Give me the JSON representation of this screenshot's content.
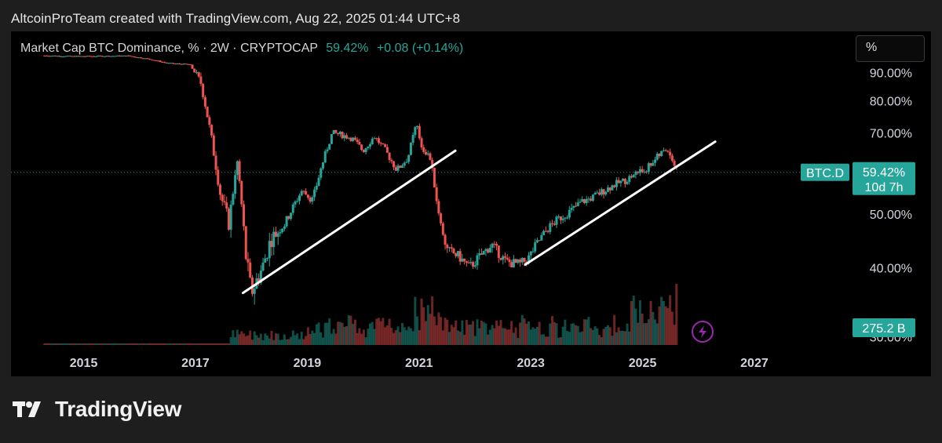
{
  "caption": "AltcoinProTeam created with TradingView.com, Aug 22, 2025 01:44 UTC+8",
  "legend": {
    "name": "Market Cap BTC Dominance, % · 2W · CRYPTOCAP",
    "value": "59.42%",
    "change": "+0.08 (+0.14%)"
  },
  "scale_button": "%",
  "brand": "TradingView",
  "colors": {
    "up": "#26a69a",
    "down": "#ef5350",
    "line": "#ffffff",
    "badge": "#26a69a",
    "lightning": "#9c27b0"
  },
  "chart_data": {
    "type": "line",
    "symbol_label": "BTC.D",
    "last_value_label": "59.42%",
    "countdown_label": "10d 7h",
    "volume_label": "275.2 B",
    "last_value": 59.42,
    "y_ticks": [
      "90.00%",
      "80.00%",
      "70.00%",
      "50.00%",
      "40.00%",
      "30.00%"
    ],
    "y_tick_values": [
      90,
      80,
      70,
      50,
      40,
      30
    ],
    "x_ticks": [
      "2015",
      "2017",
      "2019",
      "2021",
      "2023",
      "2025",
      "2027"
    ],
    "x_tick_values": [
      2015,
      2017,
      2019,
      2021,
      2023,
      2025,
      2027
    ],
    "xlim": [
      2013.7,
      2028.7
    ],
    "ylim": [
      29,
      100
    ],
    "series": [
      {
        "x": [
          2014.3,
          2014.8,
          2015.3,
          2015.8,
          2016.2,
          2016.5,
          2016.9,
          2017.1,
          2017.3,
          2017.45,
          2017.6,
          2017.75,
          2017.9,
          2018.0,
          2018.2,
          2018.35,
          2018.6,
          2018.9,
          2019.1,
          2019.3,
          2019.45,
          2019.6,
          2019.8,
          2020.0,
          2020.2,
          2020.4,
          2020.6,
          2020.8,
          2020.95,
          2021.05,
          2021.2,
          2021.35,
          2021.5,
          2021.7,
          2021.9,
          2022.1,
          2022.3,
          2022.55,
          2022.8,
          2022.95,
          2023.1,
          2023.3,
          2023.5,
          2023.7,
          2023.9,
          2024.1,
          2024.3,
          2024.5,
          2024.7,
          2024.9,
          2025.05,
          2025.2,
          2025.35,
          2025.45,
          2025.55,
          2025.62
        ],
        "values": [
          96.5,
          96.2,
          96.3,
          96.4,
          95.0,
          93.5,
          93.0,
          86.0,
          67.0,
          54.0,
          48.0,
          62.0,
          42.0,
          36.0,
          40.0,
          45.0,
          48.0,
          55.0,
          53.0,
          63.0,
          70.0,
          69.5,
          68.5,
          65.0,
          69.0,
          65.0,
          60.0,
          63.0,
          72.5,
          66.0,
          63.0,
          50.0,
          43.0,
          42.0,
          40.0,
          42.0,
          44.0,
          41.0,
          40.5,
          41.5,
          44.0,
          47.0,
          49.0,
          50.5,
          52.5,
          53.5,
          55.0,
          56.5,
          57.5,
          59.5,
          60.0,
          62.5,
          64.5,
          65.5,
          62.0,
          59.42
        ]
      }
    ],
    "trendlines": [
      {
        "from": [
          2017.85,
          36.0
        ],
        "to": [
          2021.65,
          65.0
        ]
      },
      {
        "from": [
          2022.9,
          40.5
        ],
        "to": [
          2026.3,
          67.5
        ]
      }
    ]
  }
}
